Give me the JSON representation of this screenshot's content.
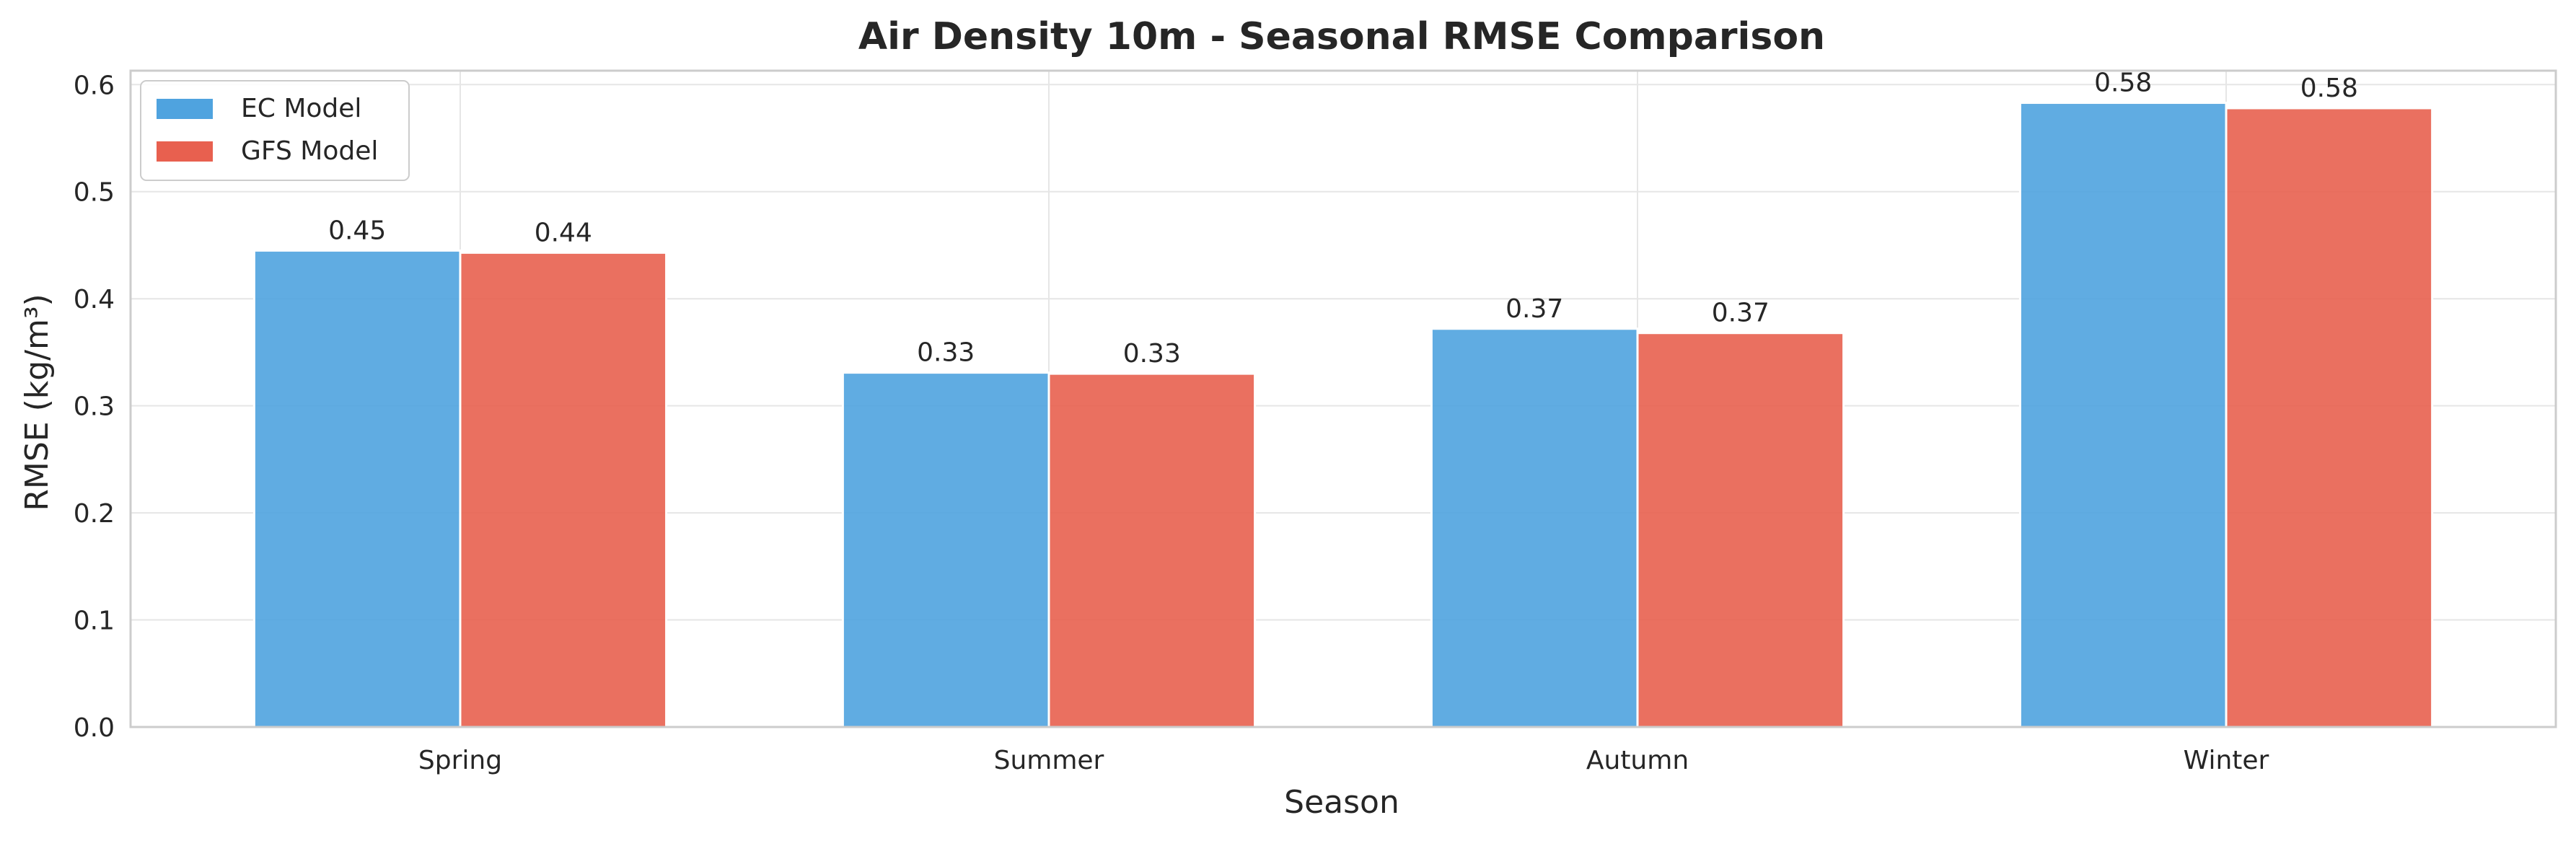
{
  "chart_data": {
    "type": "bar",
    "title": "Air Density 10m - Seasonal RMSE Comparison",
    "xlabel": "Season",
    "ylabel": "RMSE (kg/m³)",
    "categories": [
      "Spring",
      "Summer",
      "Autumn",
      "Winter"
    ],
    "series": [
      {
        "name": "EC Model",
        "color": "#4fa3df",
        "values": [
          0.445,
          0.331,
          0.372,
          0.583
        ],
        "labels": [
          "0.45",
          "0.33",
          "0.37",
          "0.58"
        ]
      },
      {
        "name": "GFS Model",
        "color": "#e8604f",
        "values": [
          0.443,
          0.33,
          0.368,
          0.578
        ],
        "labels": [
          "0.44",
          "0.33",
          "0.37",
          "0.58"
        ]
      }
    ],
    "ylim": [
      0,
      0.613
    ],
    "yticks": [
      "0.0",
      "0.1",
      "0.2",
      "0.3",
      "0.4",
      "0.5",
      "0.6"
    ],
    "ytick_values": [
      0,
      0.1,
      0.2,
      0.3,
      0.4,
      0.5,
      0.6
    ],
    "grid": true,
    "legend_position": "top-left"
  }
}
